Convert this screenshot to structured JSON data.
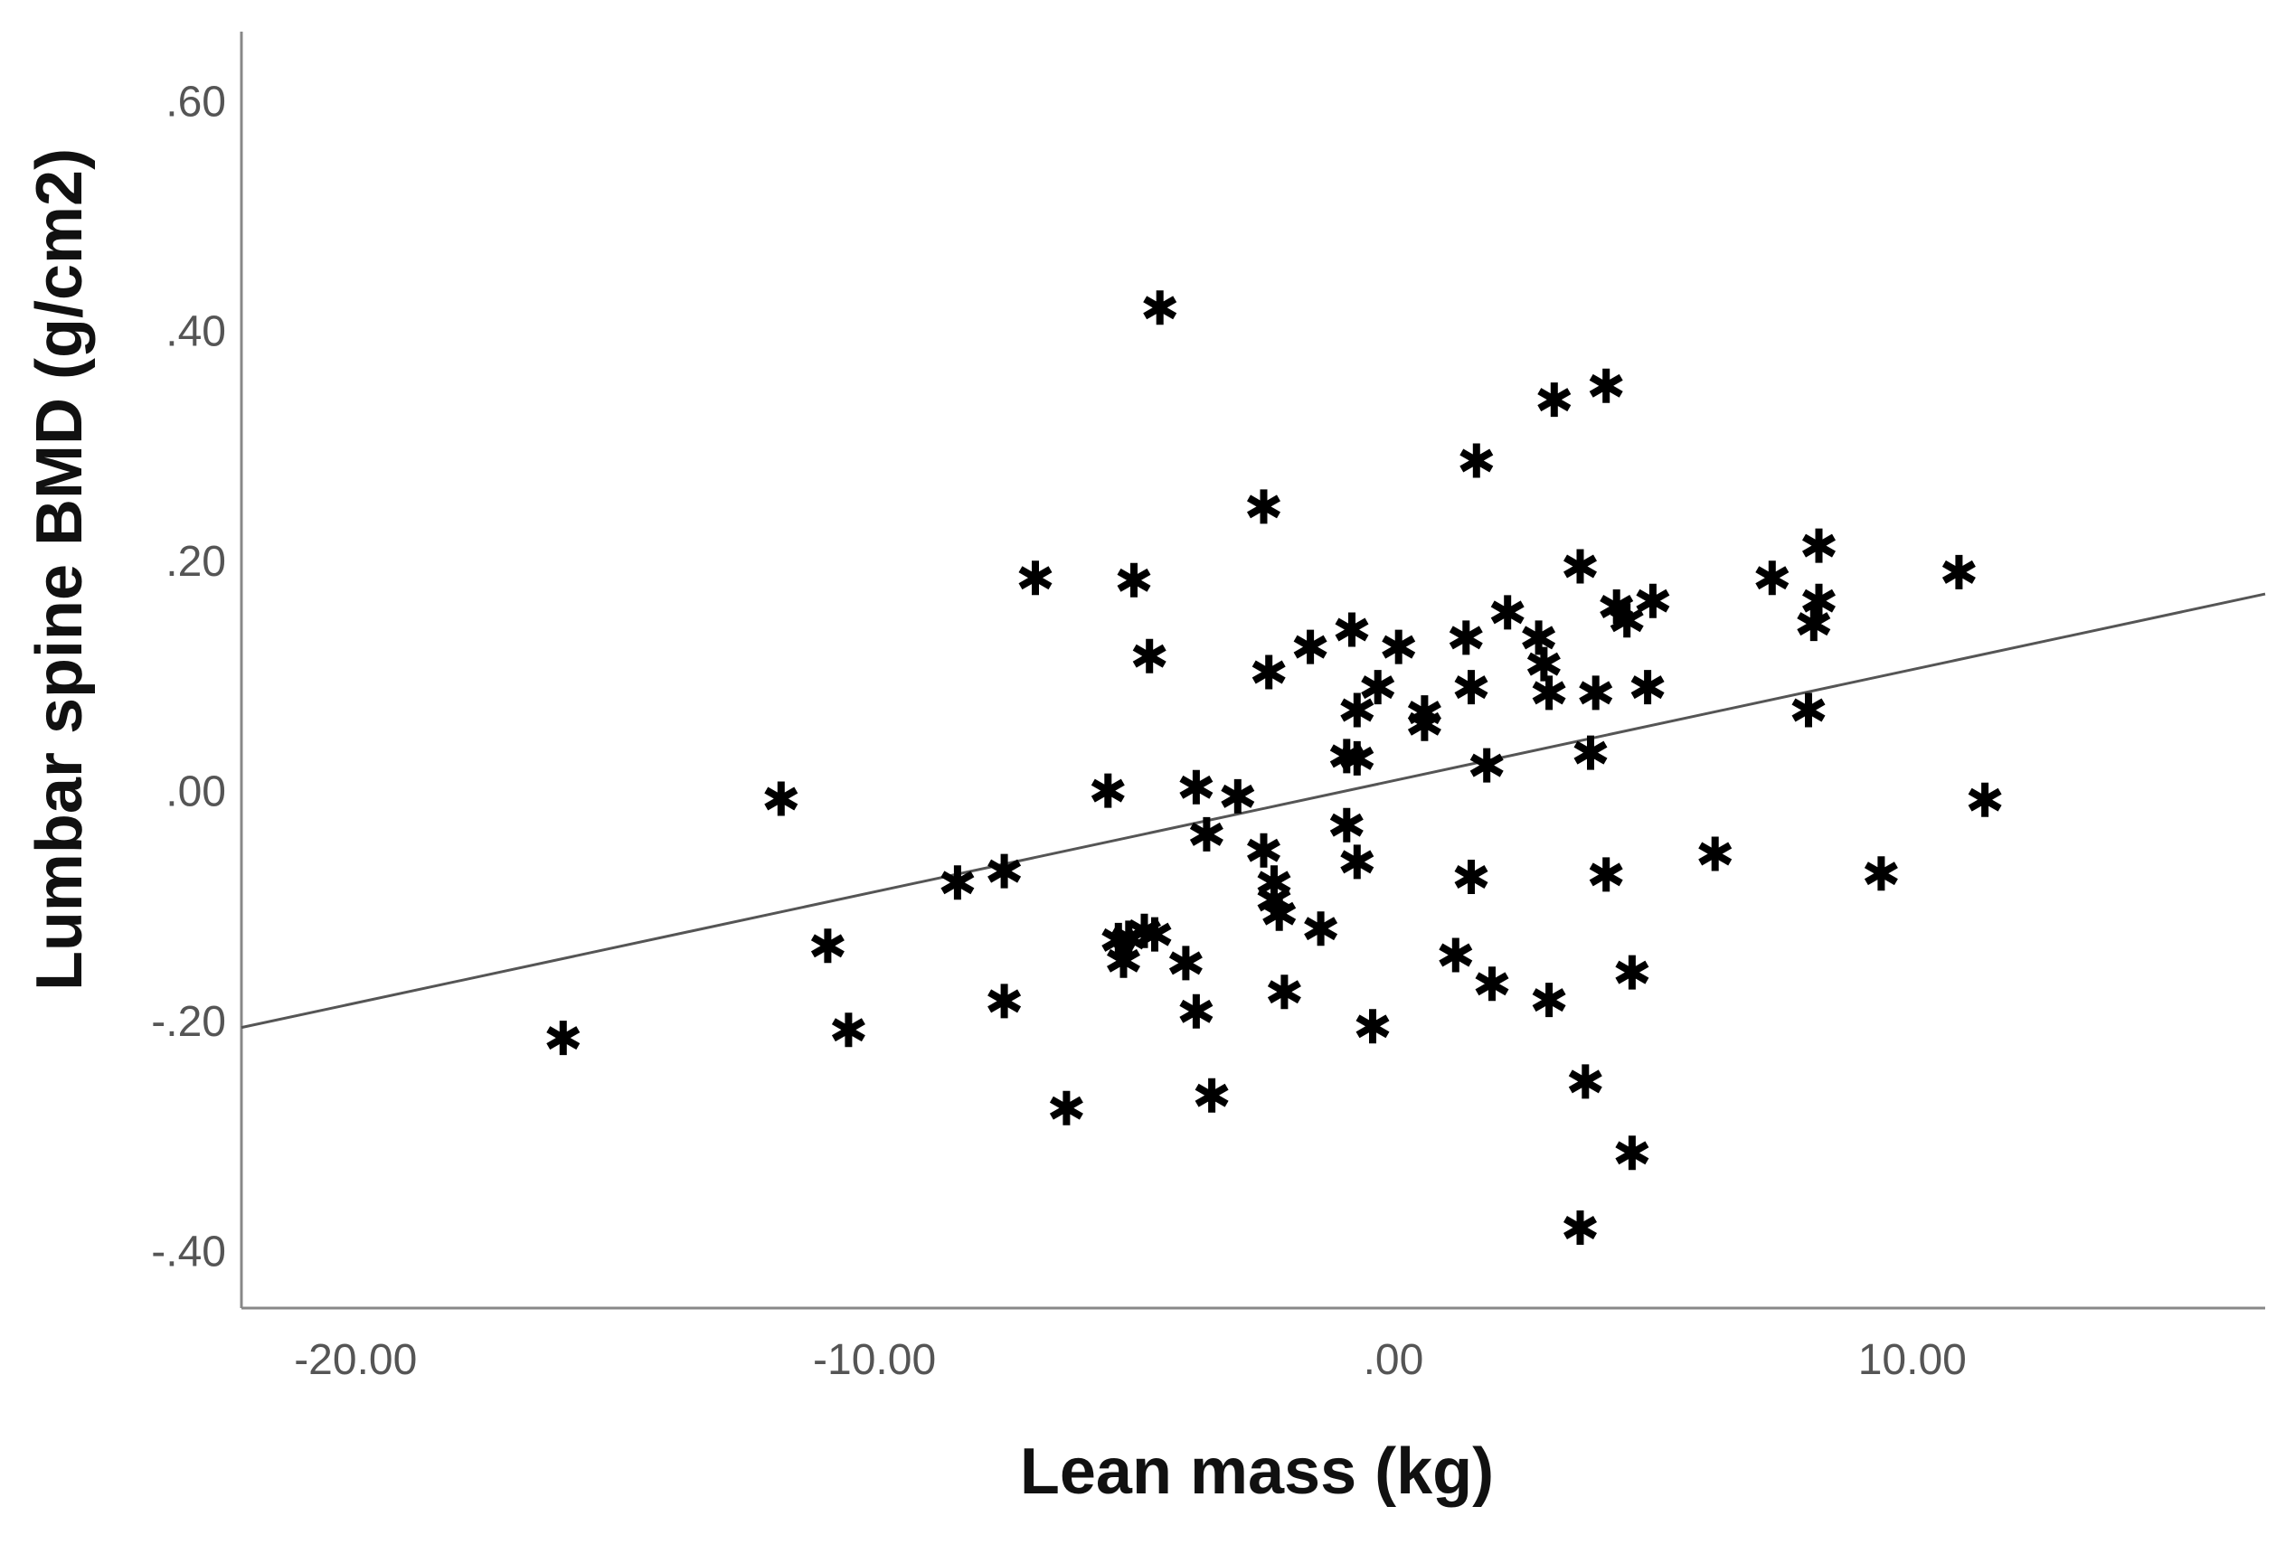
{
  "chart_data": {
    "type": "scatter",
    "title": "",
    "xlabel": "Lean mass (kg)",
    "ylabel": "Lumbar spine BMD (g/cm2)",
    "xlim": [
      -22.2,
      16.8
    ],
    "ylim": [
      -0.45,
      0.66
    ],
    "x_ticks": [
      -20,
      -10,
      0,
      10
    ],
    "x_tick_labels": [
      "-20.00",
      "-10.00",
      ".00",
      "10.00"
    ],
    "y_ticks": [
      -0.4,
      -0.2,
      0.0,
      0.2,
      0.4,
      0.6
    ],
    "y_tick_labels": [
      "-.40",
      "-.20",
      ".00",
      ".20",
      ".40",
      ".60"
    ],
    "marker": "asterisk",
    "marker_color": "#000000",
    "axis_color": "#888888",
    "fit_line": {
      "x": [
        -22.2,
        16.8
      ],
      "y": [
        -0.206,
        0.171
      ],
      "color": "#555555"
    },
    "points": [
      {
        "x": -16.0,
        "y": -0.215
      },
      {
        "x": -11.8,
        "y": -0.007
      },
      {
        "x": -10.9,
        "y": -0.135
      },
      {
        "x": -10.5,
        "y": -0.208
      },
      {
        "x": -8.4,
        "y": -0.08
      },
      {
        "x": -7.5,
        "y": -0.07
      },
      {
        "x": -7.5,
        "y": -0.183
      },
      {
        "x": -6.9,
        "y": 0.185
      },
      {
        "x": -6.3,
        "y": -0.276
      },
      {
        "x": -5.5,
        "y": 0.0
      },
      {
        "x": -5.3,
        "y": -0.13
      },
      {
        "x": -5.2,
        "y": -0.148
      },
      {
        "x": -5.1,
        "y": -0.128
      },
      {
        "x": -5.0,
        "y": 0.183
      },
      {
        "x": -4.8,
        "y": -0.122
      },
      {
        "x": -4.6,
        "y": -0.125
      },
      {
        "x": -4.7,
        "y": 0.117
      },
      {
        "x": -4.5,
        "y": 0.42
      },
      {
        "x": -4.0,
        "y": -0.15
      },
      {
        "x": -3.8,
        "y": 0.003
      },
      {
        "x": -3.8,
        "y": -0.192
      },
      {
        "x": -3.6,
        "y": -0.038
      },
      {
        "x": -3.5,
        "y": -0.265
      },
      {
        "x": -3.0,
        "y": -0.005
      },
      {
        "x": -2.5,
        "y": 0.247
      },
      {
        "x": -2.5,
        "y": -0.052
      },
      {
        "x": -2.4,
        "y": 0.103
      },
      {
        "x": -2.3,
        "y": -0.08
      },
      {
        "x": -2.3,
        "y": -0.095
      },
      {
        "x": -2.2,
        "y": -0.107
      },
      {
        "x": -2.1,
        "y": -0.175
      },
      {
        "x": -1.6,
        "y": 0.125
      },
      {
        "x": -1.4,
        "y": -0.12
      },
      {
        "x": -0.9,
        "y": -0.03
      },
      {
        "x": -0.9,
        "y": 0.03
      },
      {
        "x": -0.8,
        "y": 0.14
      },
      {
        "x": -0.7,
        "y": 0.07
      },
      {
        "x": -0.7,
        "y": 0.028
      },
      {
        "x": -0.7,
        "y": -0.062
      },
      {
        "x": -0.4,
        "y": -0.205
      },
      {
        "x": -0.3,
        "y": 0.09
      },
      {
        "x": 0.1,
        "y": 0.125
      },
      {
        "x": 0.6,
        "y": 0.068
      },
      {
        "x": 0.6,
        "y": 0.058
      },
      {
        "x": 1.2,
        "y": -0.143
      },
      {
        "x": 1.4,
        "y": 0.133
      },
      {
        "x": 1.5,
        "y": 0.09
      },
      {
        "x": 1.5,
        "y": -0.075
      },
      {
        "x": 1.6,
        "y": 0.287
      },
      {
        "x": 1.8,
        "y": 0.022
      },
      {
        "x": 1.9,
        "y": -0.168
      },
      {
        "x": 2.2,
        "y": 0.155
      },
      {
        "x": 2.8,
        "y": 0.133
      },
      {
        "x": 2.9,
        "y": 0.11
      },
      {
        "x": 3.0,
        "y": 0.085
      },
      {
        "x": 3.0,
        "y": -0.182
      },
      {
        "x": 3.1,
        "y": 0.34
      },
      {
        "x": 3.6,
        "y": 0.195
      },
      {
        "x": 3.6,
        "y": -0.38
      },
      {
        "x": 3.7,
        "y": -0.253
      },
      {
        "x": 3.8,
        "y": 0.033
      },
      {
        "x": 3.9,
        "y": 0.085
      },
      {
        "x": 4.1,
        "y": -0.073
      },
      {
        "x": 4.1,
        "y": 0.352
      },
      {
        "x": 4.3,
        "y": 0.16
      },
      {
        "x": 4.5,
        "y": 0.148
      },
      {
        "x": 4.6,
        "y": -0.158
      },
      {
        "x": 4.6,
        "y": -0.315
      },
      {
        "x": 4.9,
        "y": 0.09
      },
      {
        "x": 5.0,
        "y": 0.165
      },
      {
        "x": 6.2,
        "y": -0.055
      },
      {
        "x": 7.3,
        "y": 0.185
      },
      {
        "x": 8.0,
        "y": 0.07
      },
      {
        "x": 8.1,
        "y": 0.145
      },
      {
        "x": 8.2,
        "y": 0.165
      },
      {
        "x": 8.2,
        "y": 0.213
      },
      {
        "x": 9.4,
        "y": -0.072
      },
      {
        "x": 10.9,
        "y": 0.19
      },
      {
        "x": 11.4,
        "y": -0.008
      }
    ]
  }
}
